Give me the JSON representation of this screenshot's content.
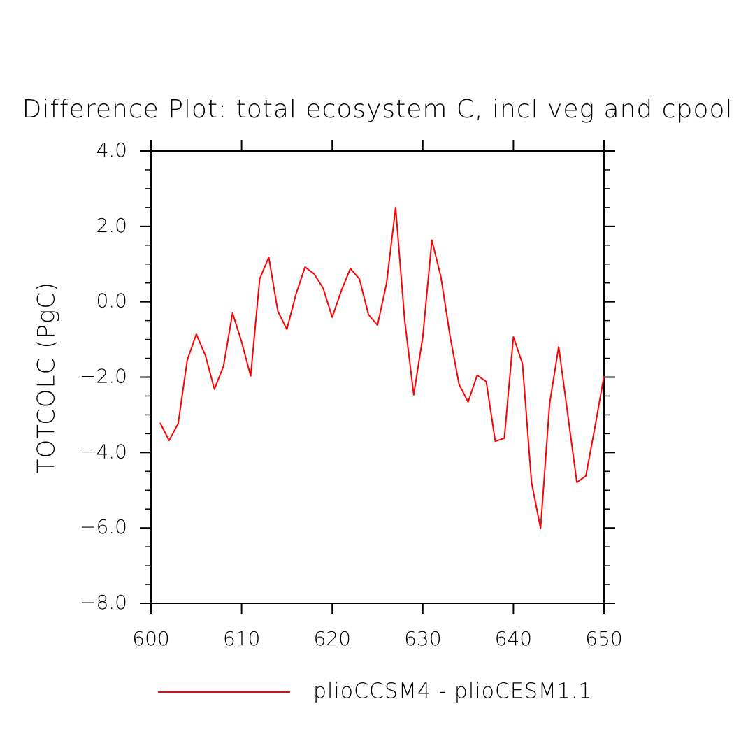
{
  "chart_data": {
    "type": "line",
    "title": "Difference Plot: total ecosystem C, incl veg and cpool",
    "y_label": "TOTCOLC  (PgC)",
    "x": [
      601,
      602,
      603,
      604,
      605,
      606,
      607,
      608,
      609,
      610,
      611,
      612,
      613,
      614,
      615,
      616,
      617,
      618,
      619,
      620,
      621,
      622,
      623,
      624,
      625,
      626,
      627,
      628,
      629,
      630,
      631,
      632,
      633,
      634,
      635,
      636,
      637,
      638,
      639,
      640,
      641,
      642,
      643,
      644,
      645,
      646,
      647,
      648,
      649,
      650
    ],
    "series": [
      {
        "name": "plioCCSM4 - plioCESM1.1",
        "color": "#ff0000",
        "values": [
          -3.21,
          -3.68,
          -3.23,
          -1.55,
          -0.86,
          -1.42,
          -2.32,
          -1.71,
          -0.3,
          -1.06,
          -1.97,
          0.61,
          1.18,
          -0.25,
          -0.73,
          0.2,
          0.92,
          0.74,
          0.36,
          -0.41,
          0.29,
          0.88,
          0.61,
          -0.34,
          -0.62,
          0.49,
          2.5,
          -0.49,
          -2.47,
          -0.93,
          1.63,
          0.66,
          -0.9,
          -2.19,
          -2.66,
          -1.95,
          -2.12,
          -3.7,
          -3.62,
          -0.93,
          -1.64,
          -4.79,
          -6.01,
          -2.7,
          -1.19,
          -2.99,
          -4.79,
          -4.62,
          -3.33,
          -1.97
        ]
      }
    ],
    "xlim": [
      600,
      650
    ],
    "xticks": [
      600,
      610,
      620,
      630,
      640,
      650
    ],
    "ylim": [
      -8,
      4
    ],
    "yticks": [
      {
        "value": -8,
        "label": "−8.0"
      },
      {
        "value": -6,
        "label": "−6.0"
      },
      {
        "value": -4,
        "label": "−4.0"
      },
      {
        "value": -2,
        "label": "−2.0"
      },
      {
        "value": 0,
        "label": "0.0"
      },
      {
        "value": 2,
        "label": "2.0"
      },
      {
        "value": 4,
        "label": "4.0"
      }
    ],
    "yminorticks": [
      -7.5,
      -7,
      -6.5,
      -5.5,
      -5,
      -4.5,
      -3.5,
      -3,
      -2.5,
      -1.5,
      -1,
      -0.5,
      0.5,
      1,
      1.5,
      2.5,
      3,
      3.5
    ],
    "legend": "bottom",
    "grid": false
  }
}
